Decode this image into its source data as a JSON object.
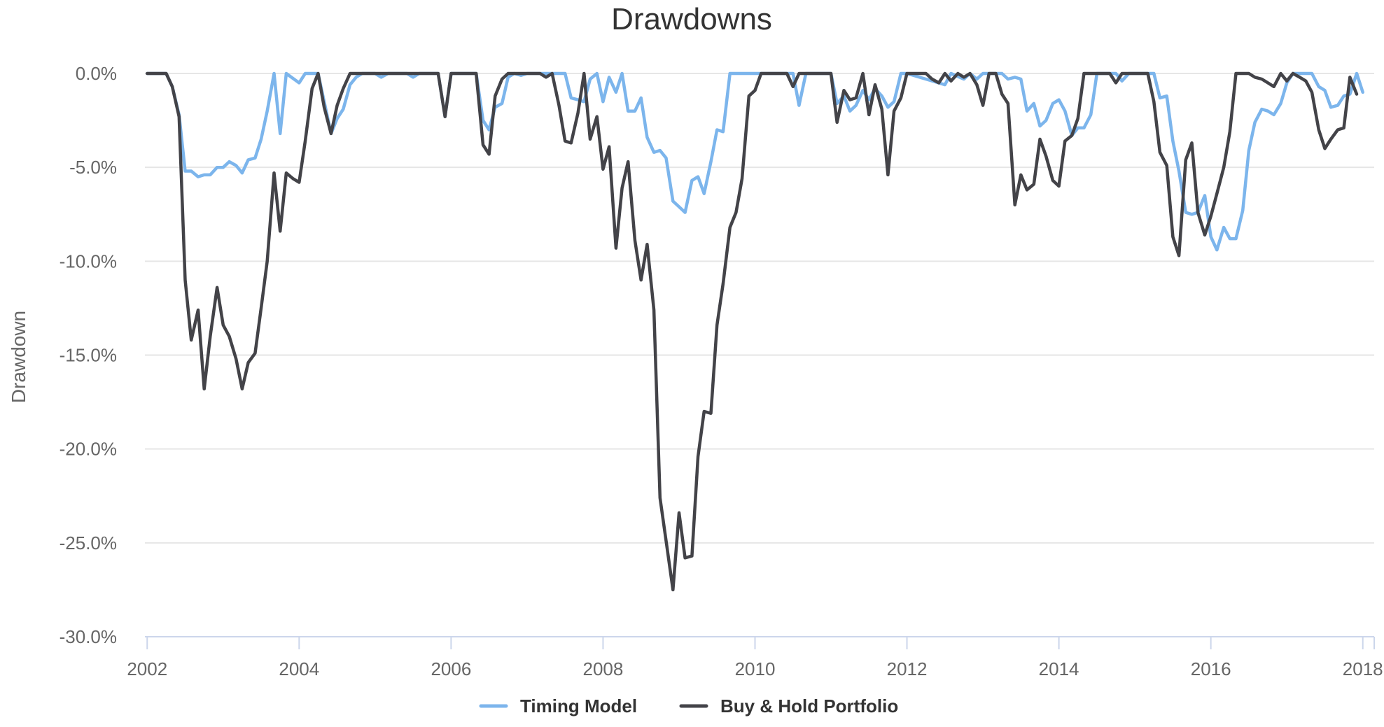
{
  "chart_data": {
    "type": "line",
    "title": "Drawdowns",
    "xlabel": "",
    "ylabel": "Drawdown",
    "xlim": [
      2001.97,
      2018.15
    ],
    "ylim": [
      -30,
      0
    ],
    "y_ticks": [
      0,
      -5,
      -10,
      -15,
      -20,
      -25,
      -30
    ],
    "y_tick_labels": [
      "0.0%",
      "-5.0%",
      "-10.0%",
      "-15.0%",
      "-20.0%",
      "-25.0%",
      "-30.0%"
    ],
    "x_ticks": [
      2002,
      2004,
      2006,
      2008,
      2010,
      2012,
      2014,
      2016,
      2018
    ],
    "x_tick_labels": [
      "2002",
      "2004",
      "2006",
      "2008",
      "2010",
      "2012",
      "2014",
      "2016",
      "2018"
    ],
    "grid": true,
    "legend": "bottom-center",
    "series": [
      {
        "name": "Timing Model",
        "color": "#7cb5ec",
        "points": [
          [
            2002.0,
            0
          ],
          [
            2002.25,
            0
          ],
          [
            2002.33,
            -0.7
          ],
          [
            2002.42,
            -2.2
          ],
          [
            2002.5,
            -5.2
          ],
          [
            2002.58,
            -5.2
          ],
          [
            2002.67,
            -5.5
          ],
          [
            2002.75,
            -5.4
          ],
          [
            2002.83,
            -5.4
          ],
          [
            2002.92,
            -5.0
          ],
          [
            2003.0,
            -5.0
          ],
          [
            2003.08,
            -4.7
          ],
          [
            2003.17,
            -4.9
          ],
          [
            2003.25,
            -5.3
          ],
          [
            2003.33,
            -4.6
          ],
          [
            2003.42,
            -4.5
          ],
          [
            2003.5,
            -3.5
          ],
          [
            2003.58,
            -2.0
          ],
          [
            2003.67,
            0
          ],
          [
            2003.75,
            -3.2
          ],
          [
            2003.83,
            0
          ],
          [
            2004.0,
            -0.5
          ],
          [
            2004.08,
            0
          ],
          [
            2004.25,
            0
          ],
          [
            2004.42,
            -3.2
          ],
          [
            2004.5,
            -2.4
          ],
          [
            2004.58,
            -1.9
          ],
          [
            2004.67,
            -0.6
          ],
          [
            2004.75,
            -0.2
          ],
          [
            2004.83,
            0
          ],
          [
            2005.0,
            0
          ],
          [
            2005.08,
            -0.2
          ],
          [
            2005.17,
            0
          ],
          [
            2005.42,
            0
          ],
          [
            2005.5,
            -0.2
          ],
          [
            2005.58,
            0
          ],
          [
            2005.83,
            0
          ],
          [
            2005.92,
            -2.3
          ],
          [
            2006.0,
            0
          ],
          [
            2006.33,
            0
          ],
          [
            2006.42,
            -2.5
          ],
          [
            2006.5,
            -3.0
          ],
          [
            2006.58,
            -1.8
          ],
          [
            2006.67,
            -1.6
          ],
          [
            2006.75,
            -0.2
          ],
          [
            2006.83,
            0
          ],
          [
            2006.92,
            -0.1
          ],
          [
            2007.0,
            0
          ],
          [
            2007.5,
            0
          ],
          [
            2007.58,
            -1.3
          ],
          [
            2007.67,
            -1.4
          ],
          [
            2007.75,
            -1.5
          ],
          [
            2007.83,
            -0.3
          ],
          [
            2007.92,
            0
          ],
          [
            2008.0,
            -1.5
          ],
          [
            2008.08,
            -0.2
          ],
          [
            2008.17,
            -1.0
          ],
          [
            2008.25,
            0
          ],
          [
            2008.33,
            -2.0
          ],
          [
            2008.42,
            -2.0
          ],
          [
            2008.5,
            -1.3
          ],
          [
            2008.58,
            -3.4
          ],
          [
            2008.67,
            -4.2
          ],
          [
            2008.75,
            -4.1
          ],
          [
            2008.83,
            -4.5
          ],
          [
            2008.92,
            -6.8
          ],
          [
            2009.0,
            -7.1
          ],
          [
            2009.08,
            -7.4
          ],
          [
            2009.17,
            -5.7
          ],
          [
            2009.25,
            -5.5
          ],
          [
            2009.33,
            -6.4
          ],
          [
            2009.42,
            -4.7
          ],
          [
            2009.5,
            -3.0
          ],
          [
            2009.58,
            -3.1
          ],
          [
            2009.67,
            0
          ],
          [
            2010.25,
            0
          ],
          [
            2010.5,
            0
          ],
          [
            2010.58,
            -1.7
          ],
          [
            2010.67,
            0
          ],
          [
            2011.0,
            0
          ],
          [
            2011.08,
            -1.6
          ],
          [
            2011.17,
            -1.2
          ],
          [
            2011.25,
            -2.0
          ],
          [
            2011.33,
            -1.7
          ],
          [
            2011.42,
            -0.9
          ],
          [
            2011.5,
            -1.4
          ],
          [
            2011.58,
            -0.8
          ],
          [
            2011.67,
            -1.2
          ],
          [
            2011.75,
            -1.8
          ],
          [
            2011.83,
            -1.5
          ],
          [
            2011.92,
            0
          ],
          [
            2012.0,
            0
          ],
          [
            2012.5,
            -0.6
          ],
          [
            2012.58,
            0
          ],
          [
            2012.75,
            -0.3
          ],
          [
            2012.83,
            0
          ],
          [
            2012.92,
            -0.3
          ],
          [
            2013.0,
            0
          ],
          [
            2013.17,
            0
          ],
          [
            2013.25,
            0
          ],
          [
            2013.33,
            -0.3
          ],
          [
            2013.42,
            -0.2
          ],
          [
            2013.5,
            -0.3
          ],
          [
            2013.58,
            -2.0
          ],
          [
            2013.67,
            -1.6
          ],
          [
            2013.75,
            -2.8
          ],
          [
            2013.83,
            -2.5
          ],
          [
            2013.92,
            -1.6
          ],
          [
            2014.0,
            -1.4
          ],
          [
            2014.08,
            -2.0
          ],
          [
            2014.17,
            -3.3
          ],
          [
            2014.25,
            -2.9
          ],
          [
            2014.33,
            -2.9
          ],
          [
            2014.42,
            -2.2
          ],
          [
            2014.5,
            0
          ],
          [
            2014.75,
            0
          ],
          [
            2014.83,
            -0.4
          ],
          [
            2014.92,
            0
          ],
          [
            2015.25,
            0
          ],
          [
            2015.33,
            -1.3
          ],
          [
            2015.42,
            -1.2
          ],
          [
            2015.5,
            -3.6
          ],
          [
            2015.58,
            -5.2
          ],
          [
            2015.67,
            -7.4
          ],
          [
            2015.75,
            -7.5
          ],
          [
            2015.83,
            -7.4
          ],
          [
            2015.92,
            -6.5
          ],
          [
            2016.0,
            -8.7
          ],
          [
            2016.08,
            -9.4
          ],
          [
            2016.17,
            -8.2
          ],
          [
            2016.25,
            -8.8
          ],
          [
            2016.33,
            -8.8
          ],
          [
            2016.42,
            -7.3
          ],
          [
            2016.5,
            -4.1
          ],
          [
            2016.58,
            -2.6
          ],
          [
            2016.67,
            -1.9
          ],
          [
            2016.75,
            -2.0
          ],
          [
            2016.83,
            -2.2
          ],
          [
            2016.92,
            -1.6
          ],
          [
            2017.0,
            -0.5
          ],
          [
            2017.08,
            0
          ],
          [
            2017.33,
            0
          ],
          [
            2017.42,
            -0.7
          ],
          [
            2017.5,
            -0.9
          ],
          [
            2017.58,
            -1.8
          ],
          [
            2017.67,
            -1.7
          ],
          [
            2017.75,
            -1.2
          ],
          [
            2017.83,
            -1.1
          ],
          [
            2017.92,
            0
          ],
          [
            2018.0,
            -1.0
          ]
        ]
      },
      {
        "name": "Buy & Hold Portfolio",
        "color": "#434348",
        "points": [
          [
            2002.0,
            0
          ],
          [
            2002.25,
            0
          ],
          [
            2002.33,
            -0.7
          ],
          [
            2002.42,
            -2.3
          ],
          [
            2002.5,
            -11.0
          ],
          [
            2002.58,
            -14.2
          ],
          [
            2002.67,
            -12.6
          ],
          [
            2002.75,
            -16.8
          ],
          [
            2002.83,
            -14.0
          ],
          [
            2002.92,
            -11.4
          ],
          [
            2003.0,
            -13.4
          ],
          [
            2003.08,
            -14.0
          ],
          [
            2003.17,
            -15.2
          ],
          [
            2003.25,
            -16.8
          ],
          [
            2003.33,
            -15.4
          ],
          [
            2003.42,
            -14.9
          ],
          [
            2003.5,
            -12.5
          ],
          [
            2003.58,
            -10.0
          ],
          [
            2003.67,
            -5.3
          ],
          [
            2003.75,
            -8.4
          ],
          [
            2003.83,
            -5.3
          ],
          [
            2003.92,
            -5.6
          ],
          [
            2004.0,
            -5.8
          ],
          [
            2004.08,
            -3.6
          ],
          [
            2004.17,
            -0.8
          ],
          [
            2004.25,
            0
          ],
          [
            2004.33,
            -1.8
          ],
          [
            2004.42,
            -3.2
          ],
          [
            2004.5,
            -1.7
          ],
          [
            2004.58,
            -0.8
          ],
          [
            2004.67,
            0
          ],
          [
            2005.83,
            0
          ],
          [
            2005.92,
            -2.3
          ],
          [
            2006.0,
            0
          ],
          [
            2006.33,
            0
          ],
          [
            2006.42,
            -3.8
          ],
          [
            2006.5,
            -4.3
          ],
          [
            2006.58,
            -1.2
          ],
          [
            2006.67,
            -0.3
          ],
          [
            2006.75,
            0
          ],
          [
            2007.17,
            0
          ],
          [
            2007.25,
            -0.2
          ],
          [
            2007.33,
            0
          ],
          [
            2007.42,
            -1.7
          ],
          [
            2007.5,
            -3.6
          ],
          [
            2007.58,
            -3.7
          ],
          [
            2007.67,
            -2.1
          ],
          [
            2007.75,
            0
          ],
          [
            2007.83,
            -3.5
          ],
          [
            2007.92,
            -2.3
          ],
          [
            2008.0,
            -5.1
          ],
          [
            2008.08,
            -3.9
          ],
          [
            2008.17,
            -9.3
          ],
          [
            2008.25,
            -6.1
          ],
          [
            2008.33,
            -4.7
          ],
          [
            2008.42,
            -8.9
          ],
          [
            2008.5,
            -11.0
          ],
          [
            2008.58,
            -9.1
          ],
          [
            2008.67,
            -12.6
          ],
          [
            2008.75,
            -22.6
          ],
          [
            2008.83,
            -24.9
          ],
          [
            2008.92,
            -27.5
          ],
          [
            2009.0,
            -23.4
          ],
          [
            2009.08,
            -25.8
          ],
          [
            2009.17,
            -25.7
          ],
          [
            2009.25,
            -20.4
          ],
          [
            2009.33,
            -18.0
          ],
          [
            2009.42,
            -18.1
          ],
          [
            2009.5,
            -13.4
          ],
          [
            2009.58,
            -11.2
          ],
          [
            2009.67,
            -8.2
          ],
          [
            2009.75,
            -7.4
          ],
          [
            2009.83,
            -5.6
          ],
          [
            2009.92,
            -1.2
          ],
          [
            2010.0,
            -0.9
          ],
          [
            2010.08,
            0
          ],
          [
            2010.42,
            0
          ],
          [
            2010.5,
            -0.7
          ],
          [
            2010.58,
            0
          ],
          [
            2011.0,
            0
          ],
          [
            2011.08,
            -2.6
          ],
          [
            2011.17,
            -0.9
          ],
          [
            2011.25,
            -1.4
          ],
          [
            2011.33,
            -1.3
          ],
          [
            2011.42,
            0
          ],
          [
            2011.5,
            -2.2
          ],
          [
            2011.58,
            -0.6
          ],
          [
            2011.67,
            -1.9
          ],
          [
            2011.75,
            -5.4
          ],
          [
            2011.83,
            -2.0
          ],
          [
            2011.92,
            -1.3
          ],
          [
            2012.0,
            0
          ],
          [
            2012.25,
            0
          ],
          [
            2012.33,
            -0.3
          ],
          [
            2012.42,
            -0.5
          ],
          [
            2012.5,
            0
          ],
          [
            2012.58,
            -0.4
          ],
          [
            2012.67,
            0
          ],
          [
            2012.75,
            -0.2
          ],
          [
            2012.83,
            0
          ],
          [
            2012.92,
            -0.6
          ],
          [
            2013.0,
            -1.7
          ],
          [
            2013.08,
            0
          ],
          [
            2013.17,
            0
          ],
          [
            2013.25,
            -1.1
          ],
          [
            2013.33,
            -1.6
          ],
          [
            2013.42,
            -7.0
          ],
          [
            2013.5,
            -5.4
          ],
          [
            2013.58,
            -6.2
          ],
          [
            2013.67,
            -5.9
          ],
          [
            2013.75,
            -3.5
          ],
          [
            2013.83,
            -4.4
          ],
          [
            2013.92,
            -5.7
          ],
          [
            2014.0,
            -6.0
          ],
          [
            2014.08,
            -3.6
          ],
          [
            2014.17,
            -3.3
          ],
          [
            2014.25,
            -2.4
          ],
          [
            2014.33,
            0
          ],
          [
            2014.67,
            0
          ],
          [
            2014.75,
            -0.5
          ],
          [
            2014.83,
            0
          ],
          [
            2015.17,
            0
          ],
          [
            2015.25,
            -1.5
          ],
          [
            2015.33,
            -4.2
          ],
          [
            2015.42,
            -4.9
          ],
          [
            2015.5,
            -8.7
          ],
          [
            2015.58,
            -9.7
          ],
          [
            2015.67,
            -4.6
          ],
          [
            2015.75,
            -3.7
          ],
          [
            2015.83,
            -7.4
          ],
          [
            2015.92,
            -8.6
          ],
          [
            2016.0,
            -7.6
          ],
          [
            2016.08,
            -6.4
          ],
          [
            2016.17,
            -5.0
          ],
          [
            2016.25,
            -3.1
          ],
          [
            2016.33,
            0
          ],
          [
            2016.5,
            0
          ],
          [
            2016.58,
            -0.2
          ],
          [
            2016.67,
            -0.3
          ],
          [
            2016.75,
            -0.5
          ],
          [
            2016.83,
            -0.7
          ],
          [
            2016.92,
            0
          ],
          [
            2017.0,
            -0.4
          ],
          [
            2017.08,
            0
          ],
          [
            2017.17,
            -0.2
          ],
          [
            2017.25,
            -0.4
          ],
          [
            2017.33,
            -1.0
          ],
          [
            2017.42,
            -3.0
          ],
          [
            2017.5,
            -4.0
          ],
          [
            2017.58,
            -3.5
          ],
          [
            2017.67,
            -3.0
          ],
          [
            2017.75,
            -2.9
          ],
          [
            2017.83,
            -0.2
          ],
          [
            2017.92,
            -1.1
          ]
        ]
      }
    ]
  }
}
